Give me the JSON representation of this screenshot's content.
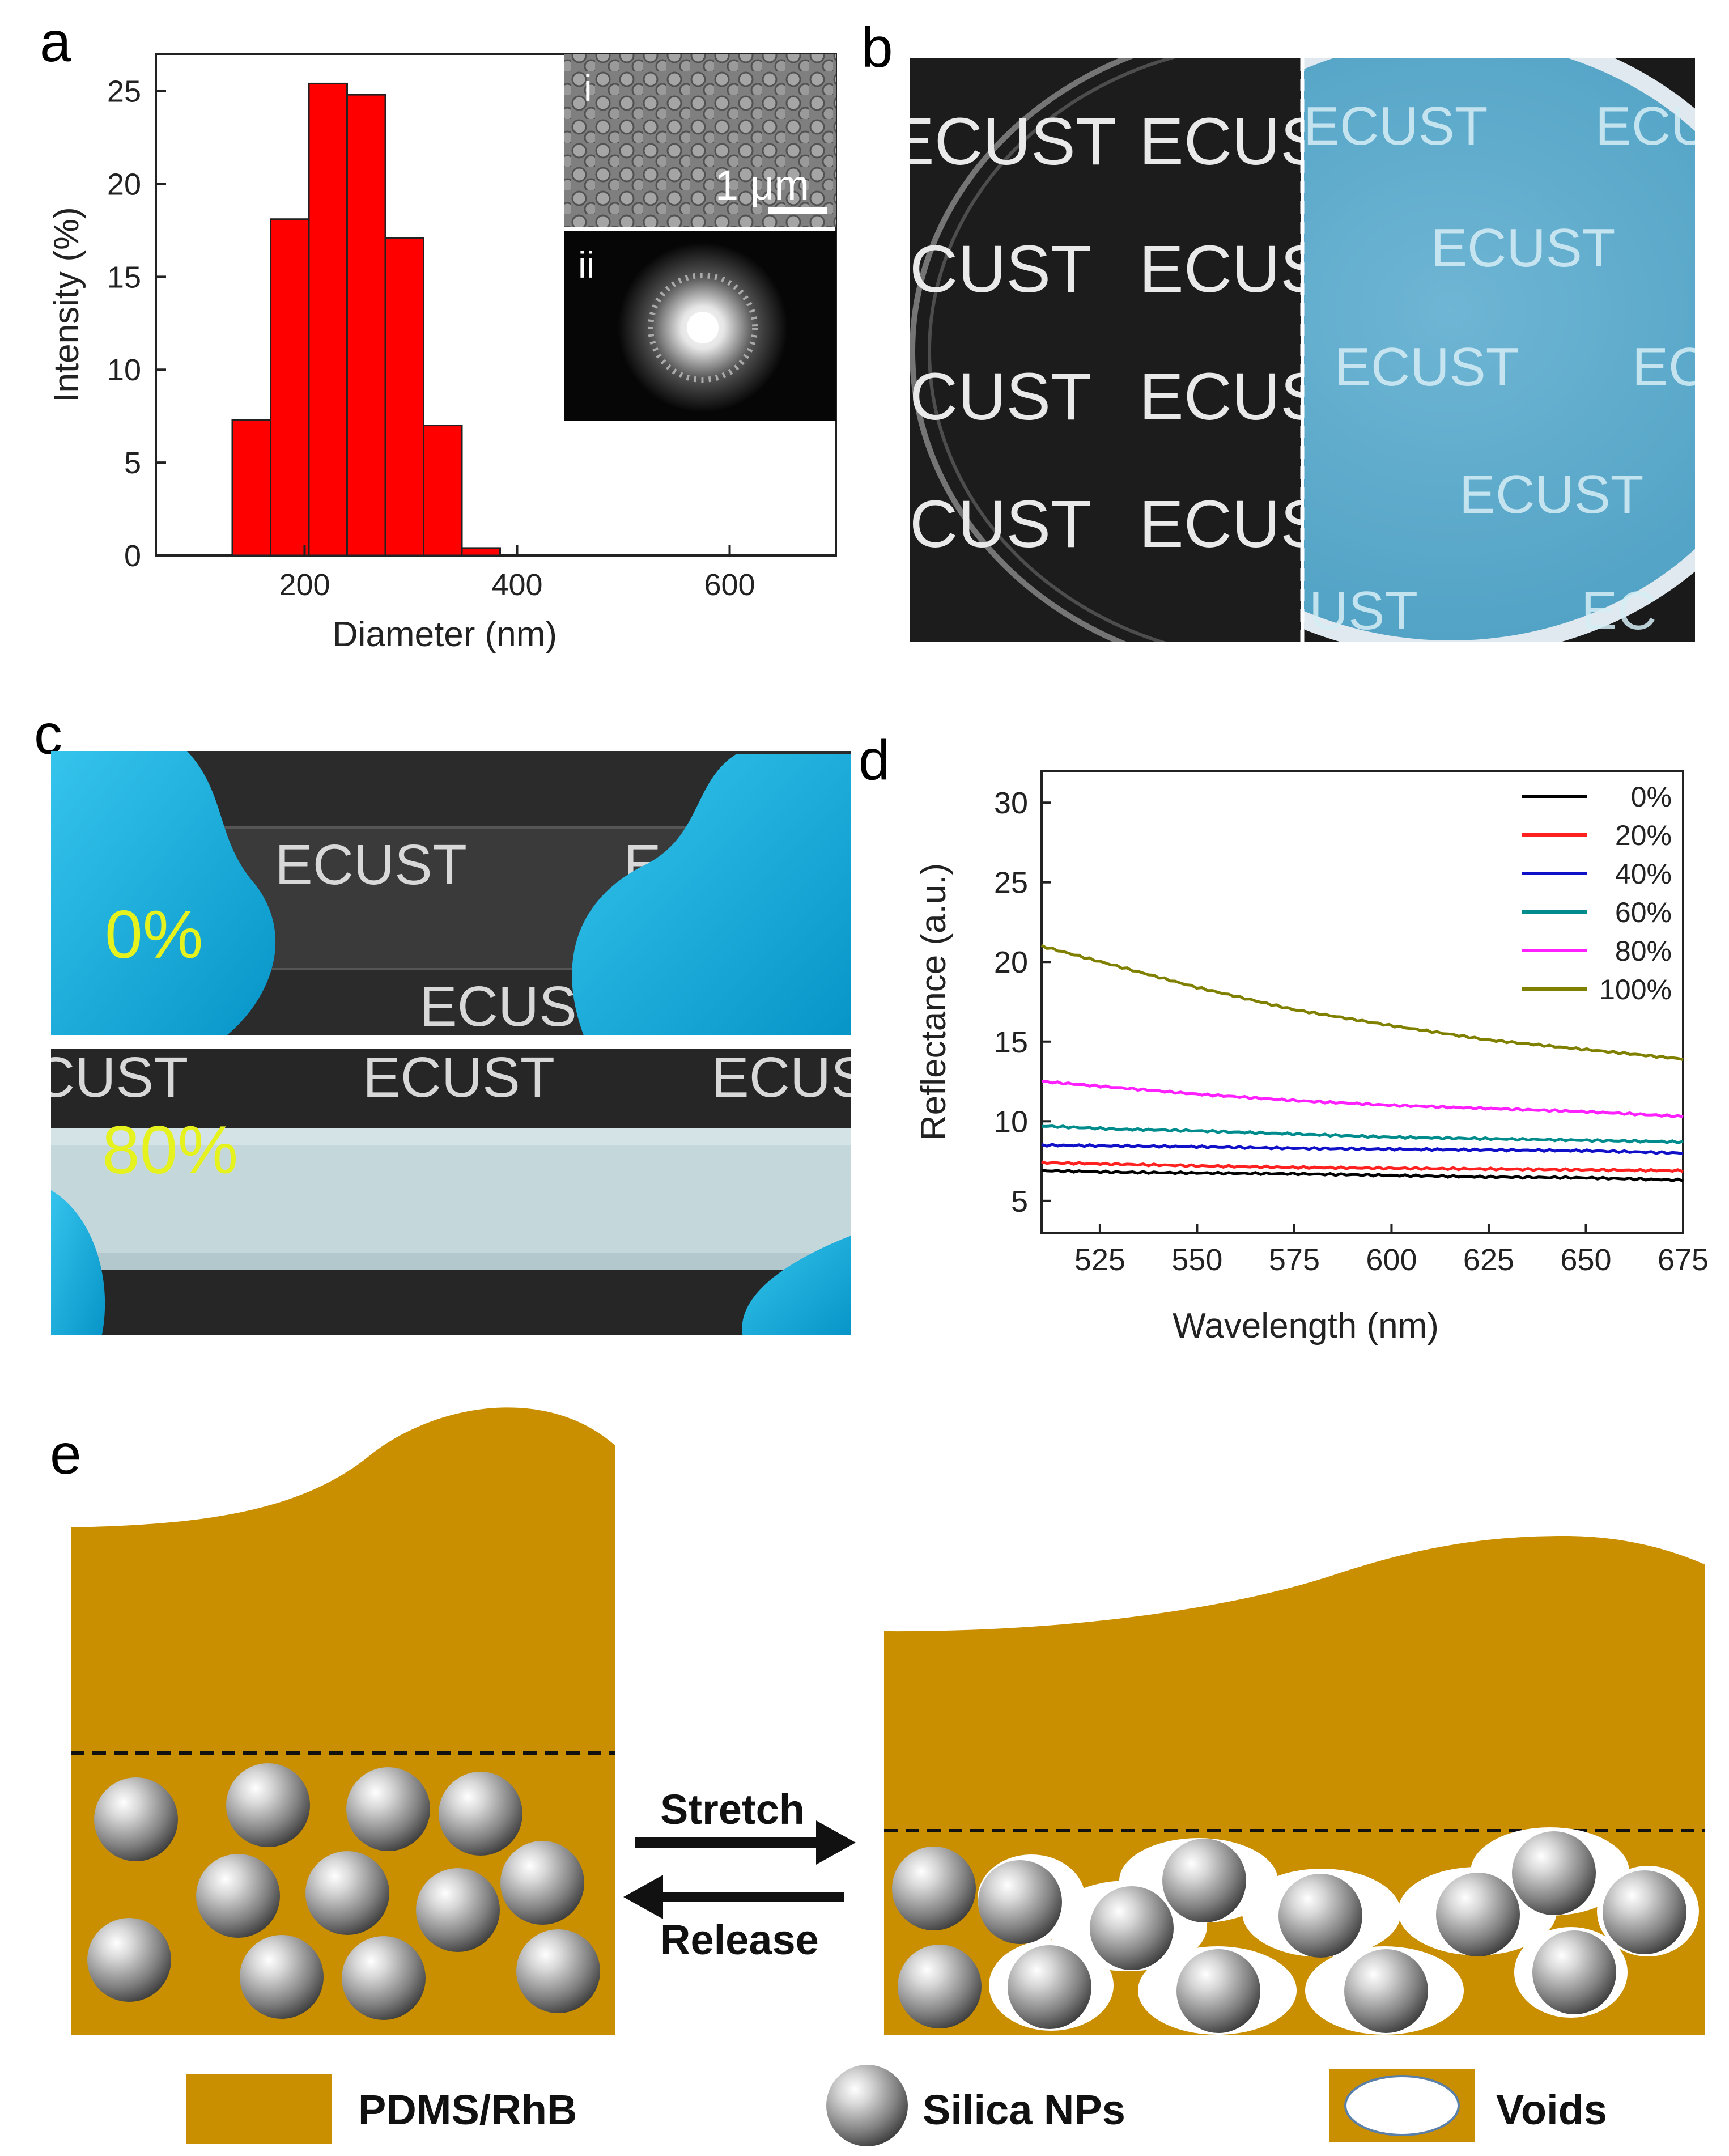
{
  "panels": {
    "a": {
      "letter": "a",
      "inset_i_label": "i",
      "inset_ii_label": "ii",
      "scale_bar": "1 μm"
    },
    "b": {
      "letter": "b",
      "photo_text": "ECUST",
      "left_fragments": [
        "ECUST",
        "ECUS",
        "CUST",
        "ECUS",
        "CUST",
        "ECUS",
        "CUST",
        "ECUS"
      ],
      "right_fragments": [
        "ECUST",
        "ECU",
        "ECUST",
        "ECUST",
        "EC",
        "ECUST",
        "UST",
        "EC"
      ]
    },
    "c": {
      "letter": "c",
      "strain_top": "0%",
      "strain_bottom": "80%",
      "top_fragments": [
        "ECUST",
        "EC",
        "ECUS"
      ],
      "bottom_fragments": [
        "CUST",
        "ECUST",
        "ECUS"
      ]
    },
    "d": {
      "letter": "d"
    },
    "e": {
      "letter": "e",
      "stretch_label": "Stretch",
      "release_label": "Release",
      "legend": {
        "pdms": "PDMS/RhB",
        "silica": "Silica NPs",
        "voids": "Voids"
      },
      "colors": {
        "matrix": "#c98f00",
        "sphere": "#8f8f8f"
      }
    }
  },
  "chart_data": [
    {
      "type": "bar",
      "panel": "a",
      "xlabel": "Diameter (nm)",
      "ylabel": "Intensity (%)",
      "xlim": [
        60,
        700
      ],
      "ylim": [
        0,
        27
      ],
      "xticks": [
        200,
        400,
        600
      ],
      "yticks": [
        0,
        5,
        10,
        15,
        20,
        25
      ],
      "bin_width": 36,
      "bins": [
        150,
        186,
        222,
        258,
        294,
        330,
        366
      ],
      "values": [
        7.3,
        18.1,
        25.4,
        24.8,
        17.1,
        7.0,
        0.4
      ],
      "color": "#ff0000"
    },
    {
      "type": "line",
      "panel": "d",
      "xlabel": "Wavelength (nm)",
      "ylabel": "Reflectance (a.u.)",
      "xlim": [
        510,
        675
      ],
      "ylim": [
        3,
        32
      ],
      "xticks": [
        525,
        550,
        575,
        600,
        625,
        650,
        675
      ],
      "yticks": [
        5,
        10,
        15,
        20,
        25,
        30
      ],
      "legend_position": "top-right",
      "x": [
        510,
        530,
        550,
        575,
        600,
        625,
        650,
        675
      ],
      "series": [
        {
          "name": "0%",
          "color": "#000000",
          "values": [
            6.9,
            6.8,
            6.75,
            6.7,
            6.6,
            6.5,
            6.45,
            6.3
          ]
        },
        {
          "name": "20%",
          "color": "#ff2020",
          "values": [
            7.4,
            7.3,
            7.2,
            7.1,
            7.05,
            7.0,
            6.95,
            6.9
          ]
        },
        {
          "name": "40%",
          "color": "#1010c8",
          "values": [
            8.5,
            8.45,
            8.4,
            8.3,
            8.25,
            8.2,
            8.15,
            8.0
          ]
        },
        {
          "name": "60%",
          "color": "#008c8c",
          "values": [
            9.7,
            9.5,
            9.4,
            9.2,
            9.0,
            8.9,
            8.8,
            8.7
          ]
        },
        {
          "name": "80%",
          "color": "#ff20ff",
          "values": [
            12.5,
            12.1,
            11.7,
            11.3,
            11.0,
            10.8,
            10.6,
            10.3
          ]
        },
        {
          "name": "100%",
          "color": "#808000",
          "values": [
            21.0,
            19.7,
            18.4,
            17.0,
            16.0,
            15.1,
            14.5,
            13.9
          ]
        }
      ]
    }
  ]
}
